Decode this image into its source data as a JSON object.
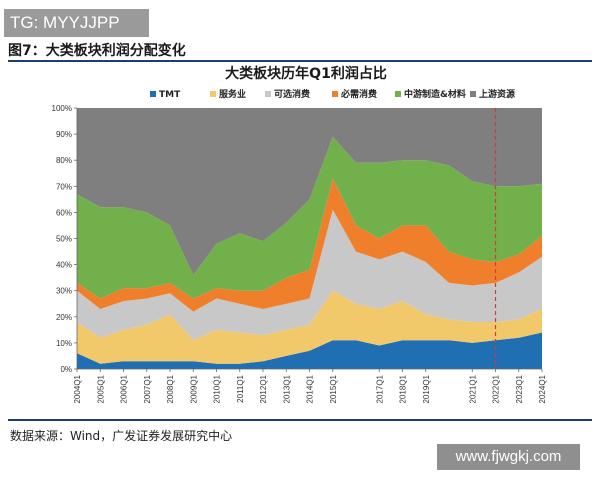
{
  "watermark_top": "TG: MYYJJPP",
  "figure_title": "图7：大类板块利润分配变化",
  "source": "数据来源：Wind，广发证券发展研究中心",
  "watermark_bottom": "www.fjwgkj.com",
  "colors": {
    "TMT": "#1f6fb2",
    "服务业": "#f2c96a",
    "可选消费": "#c8c8c8",
    "必需消费": "#f07f2c",
    "中游制造&材料": "#71b04a",
    "上游资源": "#7f7f7f",
    "reference_line": "#d23b3b"
  },
  "chart_data": {
    "type": "area",
    "stacked": true,
    "title": "大类板块历年Q1利润占比",
    "legend_position": "top",
    "x": [
      "2004Q1",
      "2005Q1",
      "2006Q1",
      "2007Q1",
      "2008Q1",
      "2009Q1",
      "2010Q1",
      "2011Q1",
      "2012Q1",
      "2013Q1",
      "2014Q1",
      "2015Q1",
      "2016Q1",
      "2017Q1",
      "2018Q1",
      "2019Q1",
      "2020Q1",
      "2021Q1",
      "2022Q1",
      "2023Q1",
      "2024Q1"
    ],
    "x_tick_labels": [
      "2004Q1",
      "2005Q1",
      "2006Q1",
      "2007Q1",
      "2008Q1",
      "2009Q1",
      "2010Q1",
      "2011Q1",
      "2012Q1",
      "2013Q1",
      "2014Q1",
      "2015Q1",
      "2017Q1",
      "2018Q1",
      "2019Q1",
      "2021Q1",
      "2022Q1",
      "2023Q1",
      "2024Q1"
    ],
    "y_tick_labels": [
      "0%",
      "10%",
      "20%",
      "30%",
      "40%",
      "50%",
      "60%",
      "70%",
      "80%",
      "90%",
      "100%"
    ],
    "ylim": [
      0,
      100
    ],
    "reference_line_x": "2022Q1",
    "series": [
      {
        "name": "TMT",
        "values": [
          6,
          2,
          3,
          3,
          3,
          3,
          2,
          2,
          3,
          5,
          7,
          11,
          11,
          9,
          11,
          11,
          11,
          10,
          11,
          12,
          14
        ]
      },
      {
        "name": "服务业",
        "values": [
          12,
          10,
          12,
          14,
          18,
          8,
          13,
          12,
          10,
          10,
          10,
          19,
          14,
          14,
          15,
          10,
          8,
          8,
          7,
          7,
          9
        ]
      },
      {
        "name": "可选消费",
        "values": [
          12,
          11,
          11,
          10,
          8,
          11,
          12,
          11,
          10,
          10,
          10,
          31,
          20,
          19,
          19,
          20,
          14,
          14,
          15,
          18,
          20
        ]
      },
      {
        "name": "必需消费",
        "values": [
          3,
          4,
          5,
          4,
          4,
          5,
          4,
          5,
          7,
          10,
          11,
          12,
          10,
          8,
          10,
          14,
          12,
          10,
          8,
          7,
          8
        ]
      },
      {
        "name": "中游制造&材料",
        "values": [
          34,
          35,
          31,
          29,
          22,
          9,
          17,
          22,
          19,
          21,
          27,
          16,
          24,
          29,
          25,
          25,
          33,
          30,
          29,
          26,
          20
        ]
      },
      {
        "name": "上游资源",
        "values": [
          33,
          38,
          38,
          40,
          45,
          64,
          52,
          48,
          51,
          44,
          35,
          11,
          21,
          21,
          20,
          20,
          22,
          28,
          30,
          30,
          29
        ]
      }
    ]
  }
}
